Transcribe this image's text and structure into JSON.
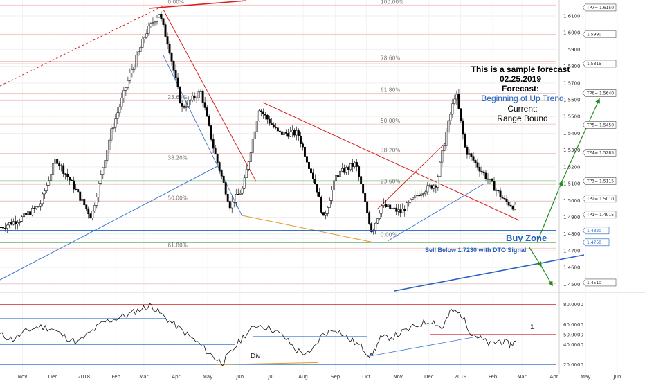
{
  "chart_data": [
    {
      "type": "candlestick",
      "yaxis": {
        "range": [
          1.446,
          1.6195
        ],
        "ticks": [
          "1.6100",
          "1.6000",
          "1.5900",
          "1.5800",
          "1.5700",
          "1.5600",
          "1.5500",
          "1.5400",
          "1.5300",
          "1.5200",
          "1.5100",
          "1.5000",
          "1.4900",
          "1.4800",
          "1.4700",
          "1.4600",
          "1.4500"
        ]
      },
      "xaxis": {
        "ticks": [
          {
            "label": "Nov",
            "t": 0.035
          },
          {
            "label": "Dec",
            "t": 0.082
          },
          {
            "label": "2018",
            "t": 0.13
          },
          {
            "label": "Feb",
            "t": 0.18
          },
          {
            "label": "Mar",
            "t": 0.223
          },
          {
            "label": "Apr",
            "t": 0.273
          },
          {
            "label": "May",
            "t": 0.322
          },
          {
            "label": "Jun",
            "t": 0.372
          },
          {
            "label": "Jul",
            "t": 0.42
          },
          {
            "label": "Aug",
            "t": 0.47
          },
          {
            "label": "Sep",
            "t": 0.52
          },
          {
            "label": "Oct",
            "t": 0.568
          },
          {
            "label": "Nov",
            "t": 0.617
          },
          {
            "label": "Dec",
            "t": 0.665
          },
          {
            "label": "2019",
            "t": 0.714
          },
          {
            "label": "Feb",
            "t": 0.764
          },
          {
            "label": "Mar",
            "t": 0.809
          },
          {
            "label": "Apr",
            "t": 0.859
          },
          {
            "label": "May",
            "t": 0.908
          },
          {
            "label": "Jun",
            "t": 0.957
          }
        ]
      },
      "fib_levels": [
        {
          "label": "0.00%",
          "t": 0.26,
          "y": 1.6165
        },
        {
          "label": "100.00%",
          "t": 0.59,
          "y": 1.6165
        },
        {
          "label": "78.60%",
          "t": 0.59,
          "y": 1.583
        },
        {
          "label": "61.80%",
          "t": 0.59,
          "y": 1.564
        },
        {
          "label": "50.00%",
          "t": 0.59,
          "y": 1.5455
        },
        {
          "label": "38.20%",
          "t": 0.59,
          "y": 1.528
        },
        {
          "label": "23.60%",
          "t": 0.26,
          "y": 1.5595
        },
        {
          "label": "38.20%",
          "t": 0.26,
          "y": 1.5235
        },
        {
          "label": "23.60%",
          "t": 0.59,
          "y": 1.5095
        },
        {
          "label": "50.00%",
          "t": 0.26,
          "y": 1.4995
        },
        {
          "label": "0.00%",
          "t": 0.59,
          "y": 1.4775
        },
        {
          "label": "61.80%",
          "t": 0.26,
          "y": 1.4715
        }
      ],
      "targets": [
        {
          "label": "TP7= 1.6150",
          "y": 1.615
        },
        {
          "label": "1.5990",
          "y": 1.599
        },
        {
          "label": "1.5815",
          "y": 1.5815
        },
        {
          "label": "TP6= 1.5640",
          "y": 1.564
        },
        {
          "label": "TP5= 1.5450",
          "y": 1.545
        },
        {
          "label": "TP4= 1.5285",
          "y": 1.5285
        },
        {
          "label": "TP3= 1.5115",
          "y": 1.5115
        },
        {
          "label": "TP2= 1.5010",
          "y": 1.501
        },
        {
          "label": "TP1= 1.4915",
          "y": 1.4915
        },
        {
          "label": "1.4510",
          "y": 1.451
        }
      ],
      "buy_zone": {
        "label": "Buy Zone",
        "upper": 1.482,
        "lower": 1.475,
        "upper_label": "1.4820",
        "lower_label": "1.4750"
      },
      "sell_note": "Sell Below 1.7230 with DTO Signal",
      "forecast": {
        "line1": "This is a sample forecast",
        "line2": "02.25.2019",
        "line3": "Forecast:",
        "line4": "Beginning of Up Trend",
        "line5": "Current:",
        "line6": "Range Bound"
      },
      "colors": {
        "up": "#ffffff",
        "down": "#000000",
        "green": "#1e8c1e",
        "blue": "#1f5fbf",
        "red": "#d62020",
        "orange": "#e09a2a"
      }
    },
    {
      "type": "line",
      "yaxis": {
        "range": [
          14,
          90
        ],
        "ticks": [
          "80.0000",
          "60.0000",
          "50.0000",
          "40.0000",
          "20.0000"
        ]
      },
      "labels": {
        "div": "Div",
        "one": "1"
      },
      "points": [
        [
          0.0,
          50
        ],
        [
          0.02,
          45
        ],
        [
          0.04,
          53
        ],
        [
          0.06,
          58
        ],
        [
          0.08,
          56
        ],
        [
          0.1,
          48
        ],
        [
          0.12,
          42
        ],
        [
          0.14,
          52
        ],
        [
          0.16,
          62
        ],
        [
          0.18,
          66
        ],
        [
          0.2,
          70
        ],
        [
          0.22,
          76
        ],
        [
          0.235,
          79
        ],
        [
          0.25,
          70
        ],
        [
          0.27,
          60
        ],
        [
          0.29,
          50
        ],
        [
          0.31,
          40
        ],
        [
          0.33,
          28
        ],
        [
          0.345,
          22
        ],
        [
          0.36,
          34
        ],
        [
          0.38,
          50
        ],
        [
          0.4,
          60
        ],
        [
          0.42,
          56
        ],
        [
          0.44,
          48
        ],
        [
          0.46,
          34
        ],
        [
          0.48,
          30
        ],
        [
          0.5,
          50
        ],
        [
          0.52,
          56
        ],
        [
          0.54,
          46
        ],
        [
          0.56,
          38
        ],
        [
          0.575,
          28
        ],
        [
          0.59,
          46
        ],
        [
          0.61,
          48
        ],
        [
          0.63,
          54
        ],
        [
          0.65,
          60
        ],
        [
          0.67,
          64
        ],
        [
          0.685,
          56
        ],
        [
          0.7,
          74
        ],
        [
          0.715,
          70
        ],
        [
          0.73,
          52
        ],
        [
          0.745,
          46
        ],
        [
          0.76,
          40
        ],
        [
          0.775,
          44
        ],
        [
          0.79,
          40
        ],
        [
          0.8,
          43
        ]
      ]
    }
  ]
}
